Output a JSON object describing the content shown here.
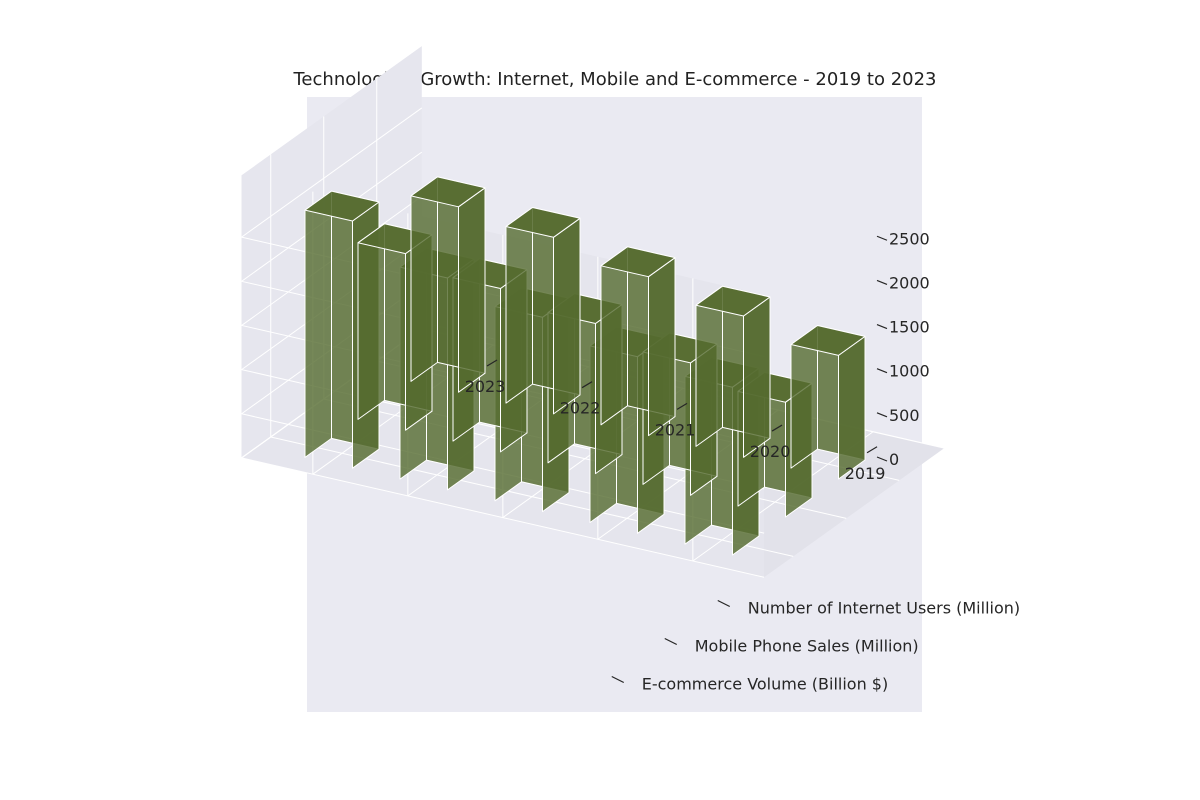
{
  "chart_data": {
    "type": "bar3d",
    "title": "Technological Growth: Internet, Mobile and E-commerce - 2019 to 2023",
    "x_categories": [
      "2019",
      "2020",
      "2021",
      "2022",
      "2023"
    ],
    "y_categories": [
      "Number of Internet Users (Million)",
      "Mobile Phone Sales (Million)",
      "E-commerce Volume (Billion $)"
    ],
    "z_ticks": [
      "0",
      "500",
      "1000",
      "1500",
      "2000",
      "2500"
    ],
    "zlim": [
      0,
      2500
    ],
    "series": [
      {
        "name": "Number of Internet Users (Million)",
        "values": [
          1400,
          1600,
          1800,
          2000,
          2100
        ]
      },
      {
        "name": "Mobile Phone Sales (Million)",
        "values": [
          1300,
          1500,
          1700,
          1850,
          2000
        ]
      },
      {
        "name": "E-commerce Volume (Billion $)",
        "values": [
          1900,
          2000,
          2200,
          2400,
          2800
        ]
      }
    ],
    "bar_color": "#556b2f",
    "edge_color": "#ffffff",
    "pane_color": "#eaeaf2",
    "grid": true
  }
}
